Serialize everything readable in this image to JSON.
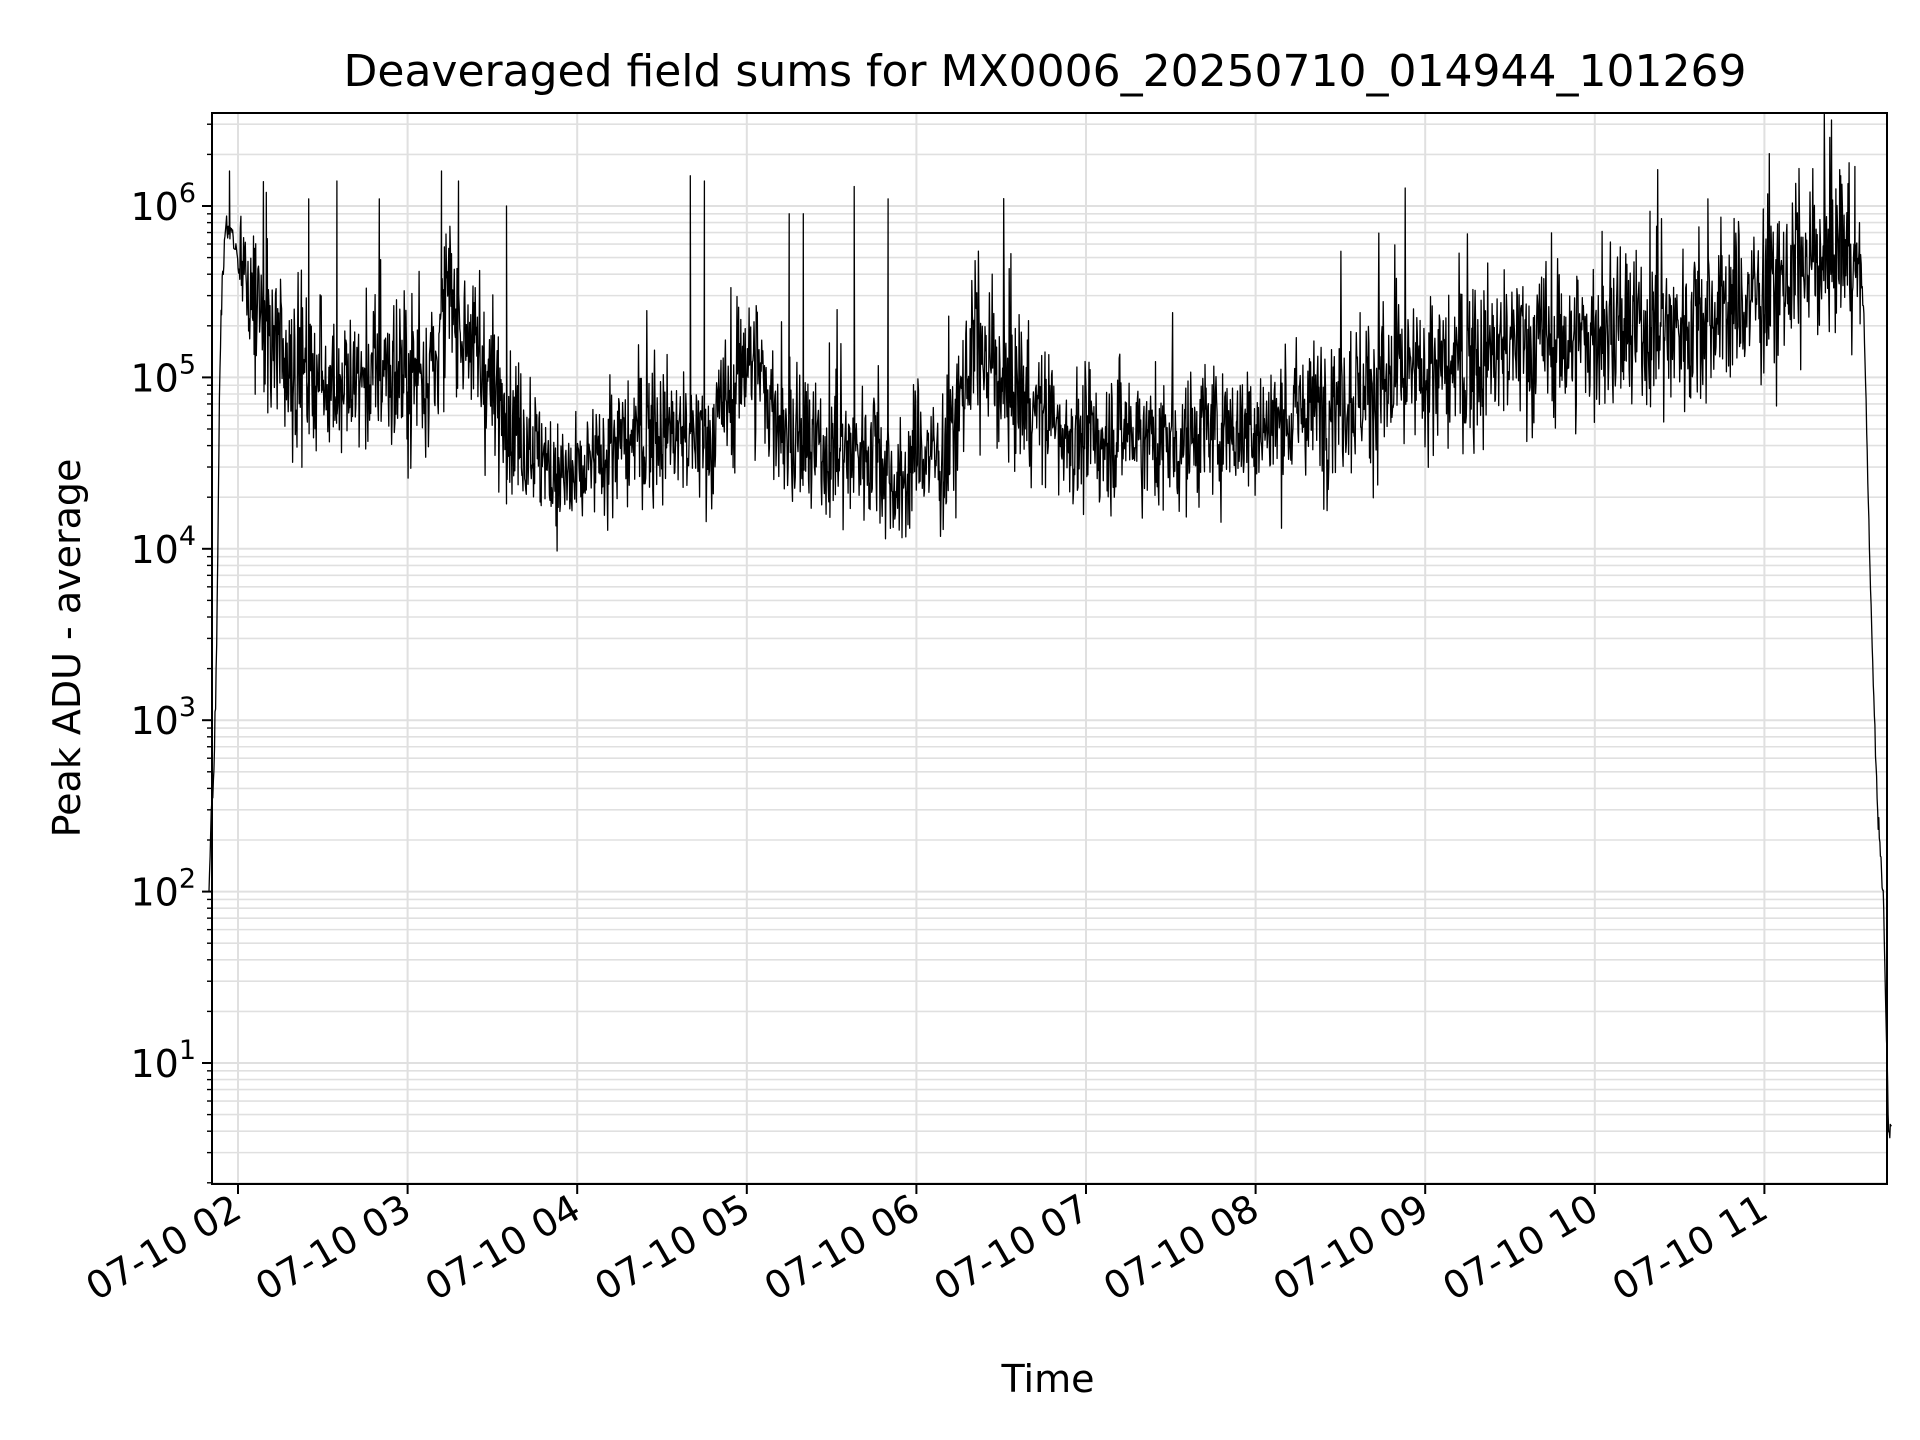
{
  "chart_data": {
    "type": "line",
    "title": "Deaveraged field sums for MX0006_20250710_014944_101269",
    "xlabel": "Time",
    "ylabel": "Peak ADU - average",
    "yscale": "log",
    "ylim": [
      2,
      3000000
    ],
    "xlim": [
      "2025-07-10 01:49:44",
      "2025-07-10 11:45:00"
    ],
    "grid": true,
    "line_color": "#000000",
    "grid_color": "#e0e0e0",
    "x_ticks": [
      "07-10 02",
      "07-10 03",
      "07-10 04",
      "07-10 05",
      "07-10 06",
      "07-10 07",
      "07-10 08",
      "07-10 09",
      "07-10 10",
      "07-10 11"
    ],
    "y_ticks": [
      {
        "base": "10",
        "exp": "1"
      },
      {
        "base": "10",
        "exp": "2"
      },
      {
        "base": "10",
        "exp": "3"
      },
      {
        "base": "10",
        "exp": "4"
      },
      {
        "base": "10",
        "exp": "5"
      },
      {
        "base": "10",
        "exp": "6"
      }
    ],
    "series": [
      {
        "x": [
          "2025-07-10 01:49:44",
          "2025-07-10 01:50:30",
          "2025-07-10 01:51:30",
          "2025-07-10 01:52:30",
          "2025-07-10 01:53:30",
          "2025-07-10 01:54:30",
          "2025-07-10 01:56:00",
          "2025-07-10 01:58:00",
          "2025-07-10 02:00:00",
          "2025-07-10 02:05:00",
          "2025-07-10 02:10:00",
          "2025-07-10 02:15:00",
          "2025-07-10 02:20:00",
          "2025-07-10 02:30:00",
          "2025-07-10 02:40:00",
          "2025-07-10 02:50:00",
          "2025-07-10 03:00:00",
          "2025-07-10 03:10:00",
          "2025-07-10 03:15:00",
          "2025-07-10 03:20:00",
          "2025-07-10 03:30:00",
          "2025-07-10 03:40:00",
          "2025-07-10 03:50:00",
          "2025-07-10 04:00:00",
          "2025-07-10 04:15:00",
          "2025-07-10 04:30:00",
          "2025-07-10 04:45:00",
          "2025-07-10 04:55:00",
          "2025-07-10 05:00:00",
          "2025-07-10 05:15:00",
          "2025-07-10 05:30:00",
          "2025-07-10 05:45:00",
          "2025-07-10 05:55:00",
          "2025-07-10 06:00:00",
          "2025-07-10 06:10:00",
          "2025-07-10 06:20:00",
          "2025-07-10 06:30:00",
          "2025-07-10 06:45:00",
          "2025-07-10 07:00:00",
          "2025-07-10 07:15:00",
          "2025-07-10 07:30:00",
          "2025-07-10 07:45:00",
          "2025-07-10 08:00:00",
          "2025-07-10 08:15:00",
          "2025-07-10 08:30:00",
          "2025-07-10 08:45:00",
          "2025-07-10 09:00:00",
          "2025-07-10 09:15:00",
          "2025-07-10 09:30:00",
          "2025-07-10 09:45:00",
          "2025-07-10 10:00:00",
          "2025-07-10 10:15:00",
          "2025-07-10 10:30:00",
          "2025-07-10 10:45:00",
          "2025-07-10 11:00:00",
          "2025-07-10 11:10:00",
          "2025-07-10 11:20:00",
          "2025-07-10 11:30:00",
          "2025-07-10 11:35:00",
          "2025-07-10 11:38:00",
          "2025-07-10 11:40:00",
          "2025-07-10 11:42:00",
          "2025-07-10 11:43:00",
          "2025-07-10 11:44:00",
          "2025-07-10 11:45:00"
        ],
        "y": [
          100,
          300,
          500,
          3000,
          100000,
          400000,
          800000,
          700000,
          500000,
          250000,
          200000,
          150000,
          120000,
          100000,
          90000,
          110000,
          100000,
          120000,
          300000,
          200000,
          80000,
          50000,
          30000,
          25000,
          40000,
          50000,
          40000,
          80000,
          150000,
          40000,
          35000,
          40000,
          20000,
          40000,
          30000,
          150000,
          100000,
          60000,
          40000,
          50000,
          40000,
          50000,
          50000,
          60000,
          80000,
          90000,
          100000,
          120000,
          150000,
          160000,
          170000,
          180000,
          200000,
          250000,
          300000,
          400000,
          500000,
          600000,
          300000,
          3000,
          300,
          100,
          20,
          4,
          4
        ]
      },
      {
        "x": [
          "2025-07-10 01:57:00",
          "2025-07-10 02:10:00",
          "2025-07-10 02:25:00",
          "2025-07-10 02:35:00",
          "2025-07-10 02:50:00",
          "2025-07-10 03:12:00",
          "2025-07-10 03:18:00",
          "2025-07-10 03:35:00",
          "2025-07-10 04:40:00",
          "2025-07-10 04:45:00",
          "2025-07-10 05:15:00",
          "2025-07-10 05:20:00",
          "2025-07-10 05:38:00",
          "2025-07-10 05:50:00",
          "2025-07-10 10:40:00",
          "2025-07-10 11:27:00",
          "2025-07-10 11:32:00"
        ],
        "y": [
          1600000,
          1200000,
          1100000,
          1400000,
          1100000,
          1600000,
          1400000,
          1000000,
          1500000,
          1400000,
          900000,
          900000,
          1300000,
          1100000,
          1100000,
          1500000,
          1700000
        ]
      }
    ]
  }
}
